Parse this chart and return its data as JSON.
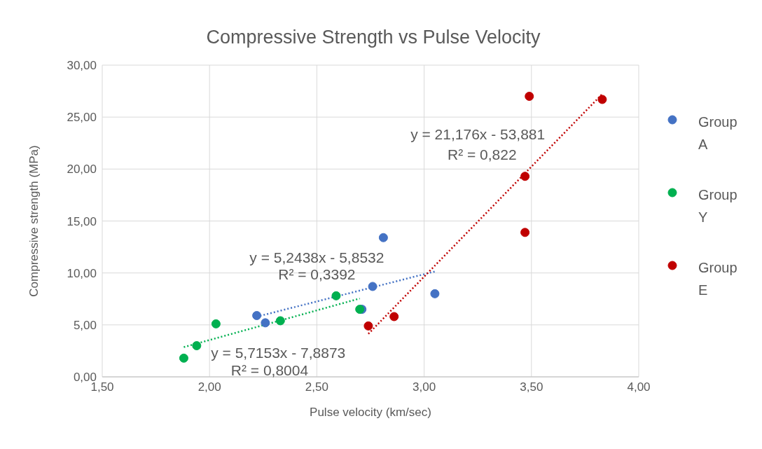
{
  "chart_data": {
    "type": "scatter",
    "title": "Compressive Strength vs Pulse Velocity",
    "xlabel": "Pulse velocity (km/sec)",
    "ylabel": "Compressive strength (MPa)",
    "xlim": [
      1.5,
      4
    ],
    "xticks": [
      {
        "value": 1.5,
        "label": "1,50"
      },
      {
        "value": 2,
        "label": "2,00"
      },
      {
        "value": 2.5,
        "label": "2,50"
      },
      {
        "value": 3,
        "label": "3,00"
      },
      {
        "value": 3.5,
        "label": "3,50"
      },
      {
        "value": 4,
        "label": "4,00"
      }
    ],
    "ylim": [
      0,
      30
    ],
    "yticks": [
      {
        "value": 0,
        "label": "0,00"
      },
      {
        "value": 5,
        "label": "5,00"
      },
      {
        "value": 10,
        "label": "10,00"
      },
      {
        "value": 15,
        "label": "15,00"
      },
      {
        "value": 20,
        "label": "20,00"
      },
      {
        "value": 25,
        "label": "25,00"
      },
      {
        "value": 30,
        "label": "30,00"
      }
    ],
    "grid": true,
    "legend": "right",
    "marker": "circle",
    "series": [
      {
        "name": "Group A",
        "color": "#4472c4",
        "x": [
          2.22,
          2.26,
          2.76,
          2.81,
          2.71,
          3.05
        ],
        "values": [
          5.9,
          5.2,
          8.7,
          13.4,
          6.5,
          8.0
        ]
      },
      {
        "name": "Group Y",
        "color": "#00b050",
        "x": [
          1.88,
          1.94,
          2.03,
          2.33,
          2.59,
          2.7
        ],
        "values": [
          1.8,
          3.0,
          5.1,
          5.4,
          7.8,
          6.5
        ]
      },
      {
        "name": "Group E",
        "color": "#c00000",
        "x": [
          2.74,
          2.86,
          3.47,
          3.47,
          3.49,
          3.83
        ],
        "values": [
          4.9,
          5.8,
          19.3,
          13.9,
          27.0,
          26.7
        ]
      },
      {
        "type": "line",
        "color": "#4472c4",
        "line_style": "dotted",
        "marker": "none",
        "x": [
          2.22,
          3.05
        ],
        "values": [
          5.79,
          10.14
        ]
      },
      {
        "type": "line",
        "color": "#00b050",
        "line_style": "dotted",
        "marker": "none",
        "x": [
          1.88,
          2.7
        ],
        "values": [
          2.86,
          7.54
        ]
      },
      {
        "type": "line",
        "color": "#c00000",
        "line_style": "dotted",
        "marker": "none",
        "x": [
          2.74,
          3.83
        ],
        "values": [
          4.14,
          27.22
        ]
      }
    ],
    "annotations": [
      "y = 5,2438x - 5,8532",
      "R² = 0,3392",
      "y = 5,7153x - 7,8873",
      "R² = 0,8004",
      "y = 21,176x - 53,881",
      "R² = 0,822"
    ]
  }
}
